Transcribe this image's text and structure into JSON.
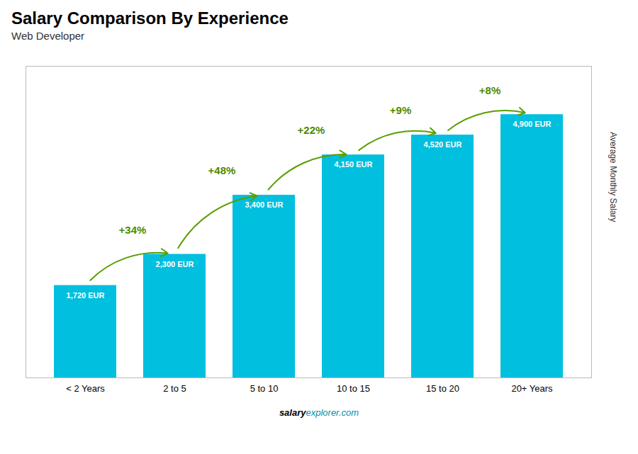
{
  "chart_data": {
    "type": "bar",
    "title": "Salary Comparison By Experience",
    "subtitle": "Web Developer",
    "categories": [
      "< 2 Years",
      "2 to 5",
      "5 to 10",
      "10 to 15",
      "15 to 20",
      "20+ Years"
    ],
    "values": [
      1720,
      2300,
      3400,
      4150,
      4520,
      4900
    ],
    "value_labels": [
      "1,720 EUR",
      "2,300 EUR",
      "3,400 EUR",
      "4,150 EUR",
      "4,520 EUR",
      "4,900 EUR"
    ],
    "data_labels": true,
    "annotations": [
      "+34%",
      "+48%",
      "+22%",
      "+9%",
      "+8%"
    ],
    "color": "#00bfdf",
    "ylim": [
      0,
      5800
    ],
    "ylabel": "Average Monthly Salary",
    "tick_labels": "x",
    "caption": [
      "salary",
      "explorer.com"
    ]
  }
}
